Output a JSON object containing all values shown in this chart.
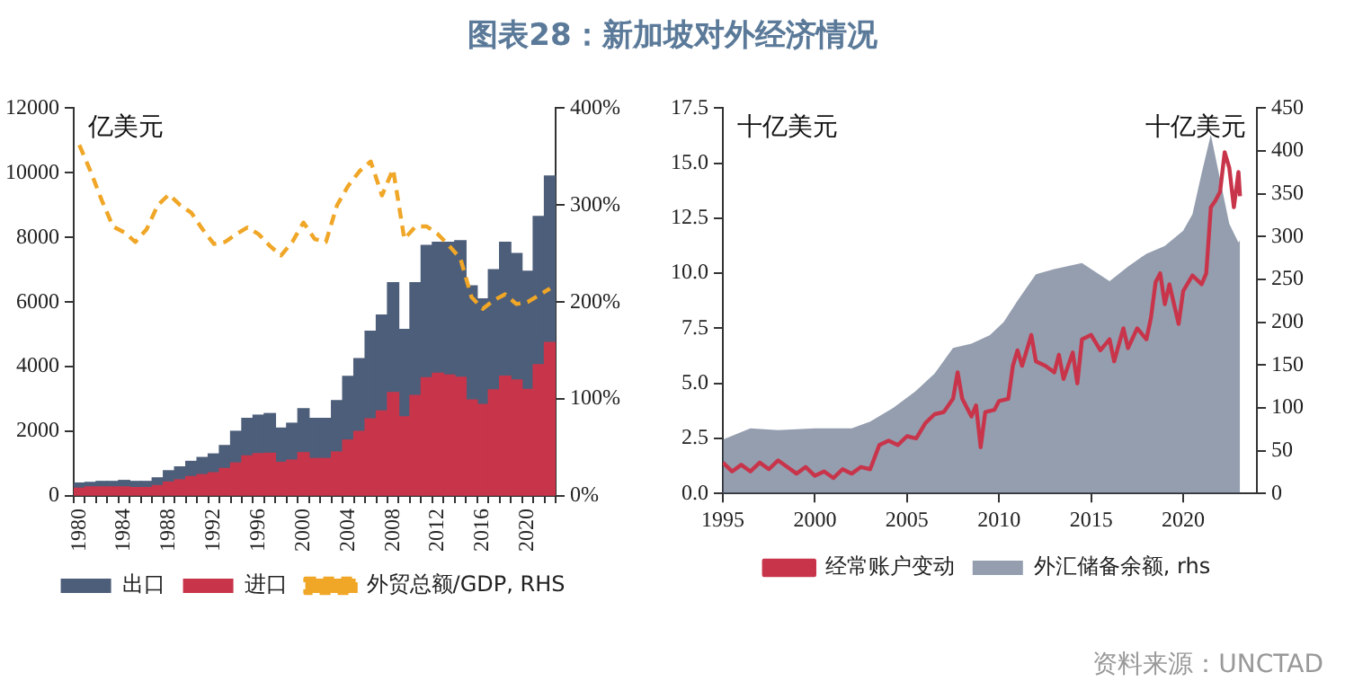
{
  "chart_data": [
    {
      "type": "bar",
      "title": "图表28：新加坡对外经济情况",
      "ylabel": "亿美元",
      "stacked": true,
      "grid": false,
      "legend": "bottom",
      "categories": [
        "1980",
        null,
        null,
        null,
        "1984",
        null,
        null,
        null,
        "1988",
        null,
        null,
        null,
        "1992",
        null,
        null,
        null,
        "1996",
        null,
        null,
        null,
        "2000",
        null,
        null,
        null,
        "2004",
        null,
        null,
        null,
        "2008",
        null,
        null,
        null,
        "2012",
        null,
        null,
        null,
        "2016",
        null,
        null,
        null,
        "2020",
        null,
        null
      ],
      "ylim": [
        0,
        12000
      ],
      "yticks": [
        0,
        2000,
        4000,
        6000,
        8000,
        10000,
        12000
      ],
      "y2lim": [
        0,
        400
      ],
      "y2ticks": [
        {
          "value": 0,
          "label": "0%"
        },
        {
          "value": 100,
          "label": "100%"
        },
        {
          "value": 200,
          "label": "200%"
        },
        {
          "value": 300,
          "label": "300%"
        },
        {
          "value": 400,
          "label": "400%"
        }
      ],
      "series": [
        {
          "name": "进口",
          "color": "#c8354b",
          "values": [
            240,
            280,
            280,
            280,
            280,
            260,
            260,
            320,
            430,
            500,
            600,
            660,
            720,
            850,
            1020,
            1240,
            1310,
            1320,
            1040,
            1110,
            1340,
            1160,
            1160,
            1360,
            1730,
            2000,
            2390,
            2630,
            3200,
            2450,
            3110,
            3660,
            3800,
            3740,
            3670,
            2970,
            2830,
            3280,
            3710,
            3590,
            3300,
            4060,
            4750
          ]
        },
        {
          "name": "出口",
          "color": "#4d5e7a",
          "values": [
            160,
            140,
            170,
            170,
            200,
            190,
            190,
            240,
            350,
            400,
            470,
            530,
            580,
            710,
            980,
            1160,
            1190,
            1230,
            1060,
            1140,
            1360,
            1240,
            1240,
            1590,
            1970,
            2250,
            2710,
            2970,
            3400,
            2700,
            3490,
            4090,
            4050,
            4110,
            4230,
            3530,
            3270,
            3720,
            4140,
            3910,
            3650,
            4590,
            5150
          ]
        },
        {
          "name": "外贸总额/GDP, RHS",
          "type": "line",
          "axis": "y2",
          "color": "#f0a626",
          "line_style": "dashed",
          "marker": "none",
          "values": [
            362,
            335,
            305,
            278,
            272,
            262,
            275,
            300,
            311,
            300,
            292,
            275,
            260,
            262,
            270,
            277,
            270,
            258,
            248,
            262,
            282,
            265,
            262,
            300,
            320,
            335,
            345,
            310,
            337,
            265,
            278,
            278,
            270,
            258,
            245,
            205,
            193,
            202,
            208,
            198,
            200,
            207,
            214
          ]
        }
      ]
    },
    {
      "type": "line",
      "ylabel": "十亿美元",
      "y2label": "十亿美元",
      "grid": false,
      "legend": "bottom",
      "annotations": [
        "资料来源：UNCTAD"
      ],
      "xlim": [
        "1995",
        "2024"
      ],
      "xticks": [
        "1995",
        "2000",
        "2005",
        "2010",
        "2015",
        "2020"
      ],
      "ylim": [
        0,
        17.5
      ],
      "yticks": [
        {
          "value": 0,
          "label": "0.0"
        },
        2.5,
        {
          "value": 5,
          "label": "5.0"
        },
        7.5,
        {
          "value": 10,
          "label": "10.0"
        },
        12.5,
        {
          "value": 15,
          "label": "15.0"
        },
        17.5
      ],
      "y2lim": [
        0,
        450
      ],
      "y2ticks": [
        0,
        50,
        100,
        150,
        200,
        250,
        300,
        350,
        400,
        450
      ],
      "series": [
        {
          "name": "经常账户变动",
          "type": "line",
          "color": "#c8354b",
          "marker": "none",
          "line_style": "solid",
          "x": [
            "1995-01",
            "1995-07",
            "1996-01",
            "1996-07",
            "1997-01",
            "1997-07",
            "1998-01",
            "1998-07",
            "1999-01",
            "1999-07",
            "2000-01",
            "2000-07",
            "2001-01",
            "2001-07",
            "2002-01",
            "2002-07",
            "2003-01",
            "2003-07",
            "2004-01",
            "2004-07",
            "2005-01",
            "2005-07",
            "2006-01",
            "2006-07",
            "2007-01",
            "2007-07",
            "2007-10",
            "2008-01",
            "2008-07",
            "2008-10",
            "2009-01",
            "2009-04",
            "2009-10",
            "2010-01",
            "2010-07",
            "2010-10",
            "2011-01",
            "2011-04",
            "2011-10",
            "2012-01",
            "2012-07",
            "2013-01",
            "2013-04",
            "2013-07",
            "2014-01",
            "2014-04",
            "2014-07",
            "2015-01",
            "2015-07",
            "2016-01",
            "2016-04",
            "2016-10",
            "2017-01",
            "2017-07",
            "2018-01",
            "2018-04",
            "2018-07",
            "2018-10",
            "2019-01",
            "2019-04",
            "2019-10",
            "2020-01",
            "2020-07",
            "2021-01",
            "2021-04",
            "2021-07",
            "2021-10",
            "2022-01",
            "2022-04",
            "2022-07",
            "2022-10",
            "2023-01",
            "2023-02"
          ],
          "values": [
            1.4,
            1.0,
            1.3,
            1.0,
            1.4,
            1.1,
            1.5,
            1.2,
            0.9,
            1.2,
            0.8,
            1.0,
            0.7,
            1.1,
            0.9,
            1.2,
            1.1,
            2.2,
            2.4,
            2.2,
            2.6,
            2.5,
            3.2,
            3.6,
            3.7,
            4.3,
            5.5,
            4.3,
            3.5,
            4.0,
            2.1,
            3.7,
            3.8,
            4.2,
            4.3,
            5.8,
            6.5,
            5.8,
            7.2,
            6.0,
            5.8,
            5.5,
            6.3,
            5.2,
            6.4,
            5.0,
            7.0,
            7.2,
            6.5,
            7.0,
            6.0,
            7.5,
            6.6,
            7.5,
            7.0,
            8.0,
            9.6,
            10.0,
            8.6,
            9.5,
            7.7,
            9.2,
            9.9,
            9.5,
            10.0,
            13.0,
            13.3,
            13.7,
            15.5,
            14.8,
            13.0,
            14.6,
            13.5
          ]
        },
        {
          "name": "外汇储备余额, rhs",
          "type": "area",
          "axis": "y2",
          "color": "#4d5e7a",
          "x": [
            "1995-01",
            "1996-07",
            "1998-01",
            "2000-01",
            "2002-01",
            "2003-01",
            "2004-04",
            "2005-07",
            "2006-07",
            "2007-07",
            "2008-07",
            "2009-07",
            "2010-04",
            "2011-01",
            "2012-01",
            "2013-01",
            "2014-07",
            "2015-07",
            "2016-01",
            "2017-01",
            "2018-01",
            "2019-01",
            "2020-01",
            "2020-07",
            "2021-01",
            "2021-07",
            "2022-01",
            "2022-07",
            "2023-01",
            "2023-02"
          ],
          "values": [
            63,
            76,
            74,
            76,
            76,
            84,
            100,
            120,
            140,
            170,
            175,
            185,
            200,
            225,
            256,
            262,
            269,
            255,
            248,
            265,
            280,
            289,
            307,
            326,
            374,
            419,
            367,
            315,
            293,
            296
          ]
        }
      ]
    }
  ]
}
